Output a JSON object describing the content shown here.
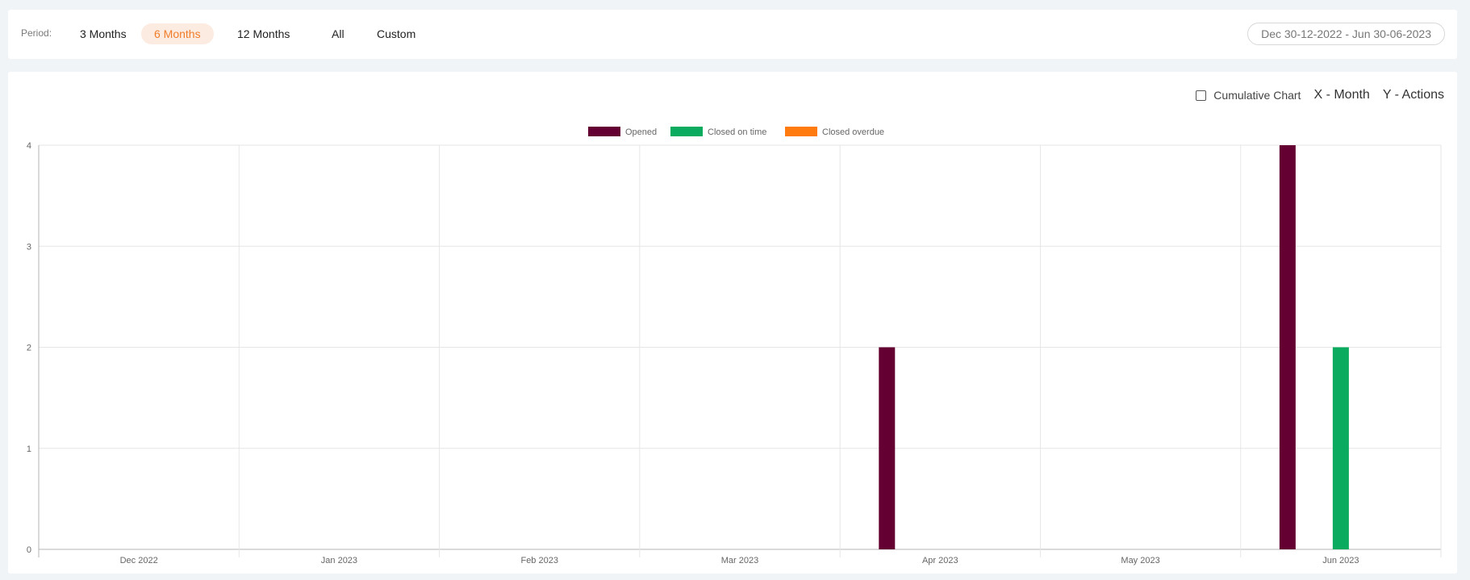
{
  "filter": {
    "period_label": "Period:",
    "buttons": [
      {
        "label": "3 Months",
        "active": false
      },
      {
        "label": "6 Months",
        "active": true
      },
      {
        "label": "12 Months",
        "active": false
      },
      {
        "label": "All",
        "active": false
      },
      {
        "label": "Custom",
        "active": false
      }
    ],
    "date_range": "Dec 30-12-2022 - Jun 30-06-2023"
  },
  "controls": {
    "cumulative_label": "Cumulative Chart",
    "cumulative_checked": false,
    "x_axis_label": "X - Month",
    "y_axis_label": "Y - Actions"
  },
  "colors": {
    "opened": "#650032",
    "closed_on_time": "#0aab5e",
    "closed_overdue": "#ff7b0e",
    "active_accent": "#f07d2a"
  },
  "chart_data": {
    "type": "bar",
    "title": "",
    "xlabel": "",
    "ylabel": "",
    "categories": [
      "Dec 2022",
      "Jan 2023",
      "Feb 2023",
      "Mar 2023",
      "Apr 2023",
      "May 2023",
      "Jun 2023"
    ],
    "series": [
      {
        "name": "Opened",
        "color": "#650032",
        "values": [
          0,
          0,
          0,
          0,
          2,
          0,
          4
        ]
      },
      {
        "name": "Closed on time",
        "color": "#0aab5e",
        "values": [
          0,
          0,
          0,
          0,
          0,
          0,
          2
        ]
      },
      {
        "name": "Closed overdue",
        "color": "#ff7b0e",
        "values": [
          0,
          0,
          0,
          0,
          0,
          0,
          0
        ]
      }
    ],
    "y_ticks": [
      0,
      1,
      2,
      3,
      4
    ],
    "ylim": [
      0,
      4
    ],
    "grid": true,
    "legend_position": "top-center"
  }
}
